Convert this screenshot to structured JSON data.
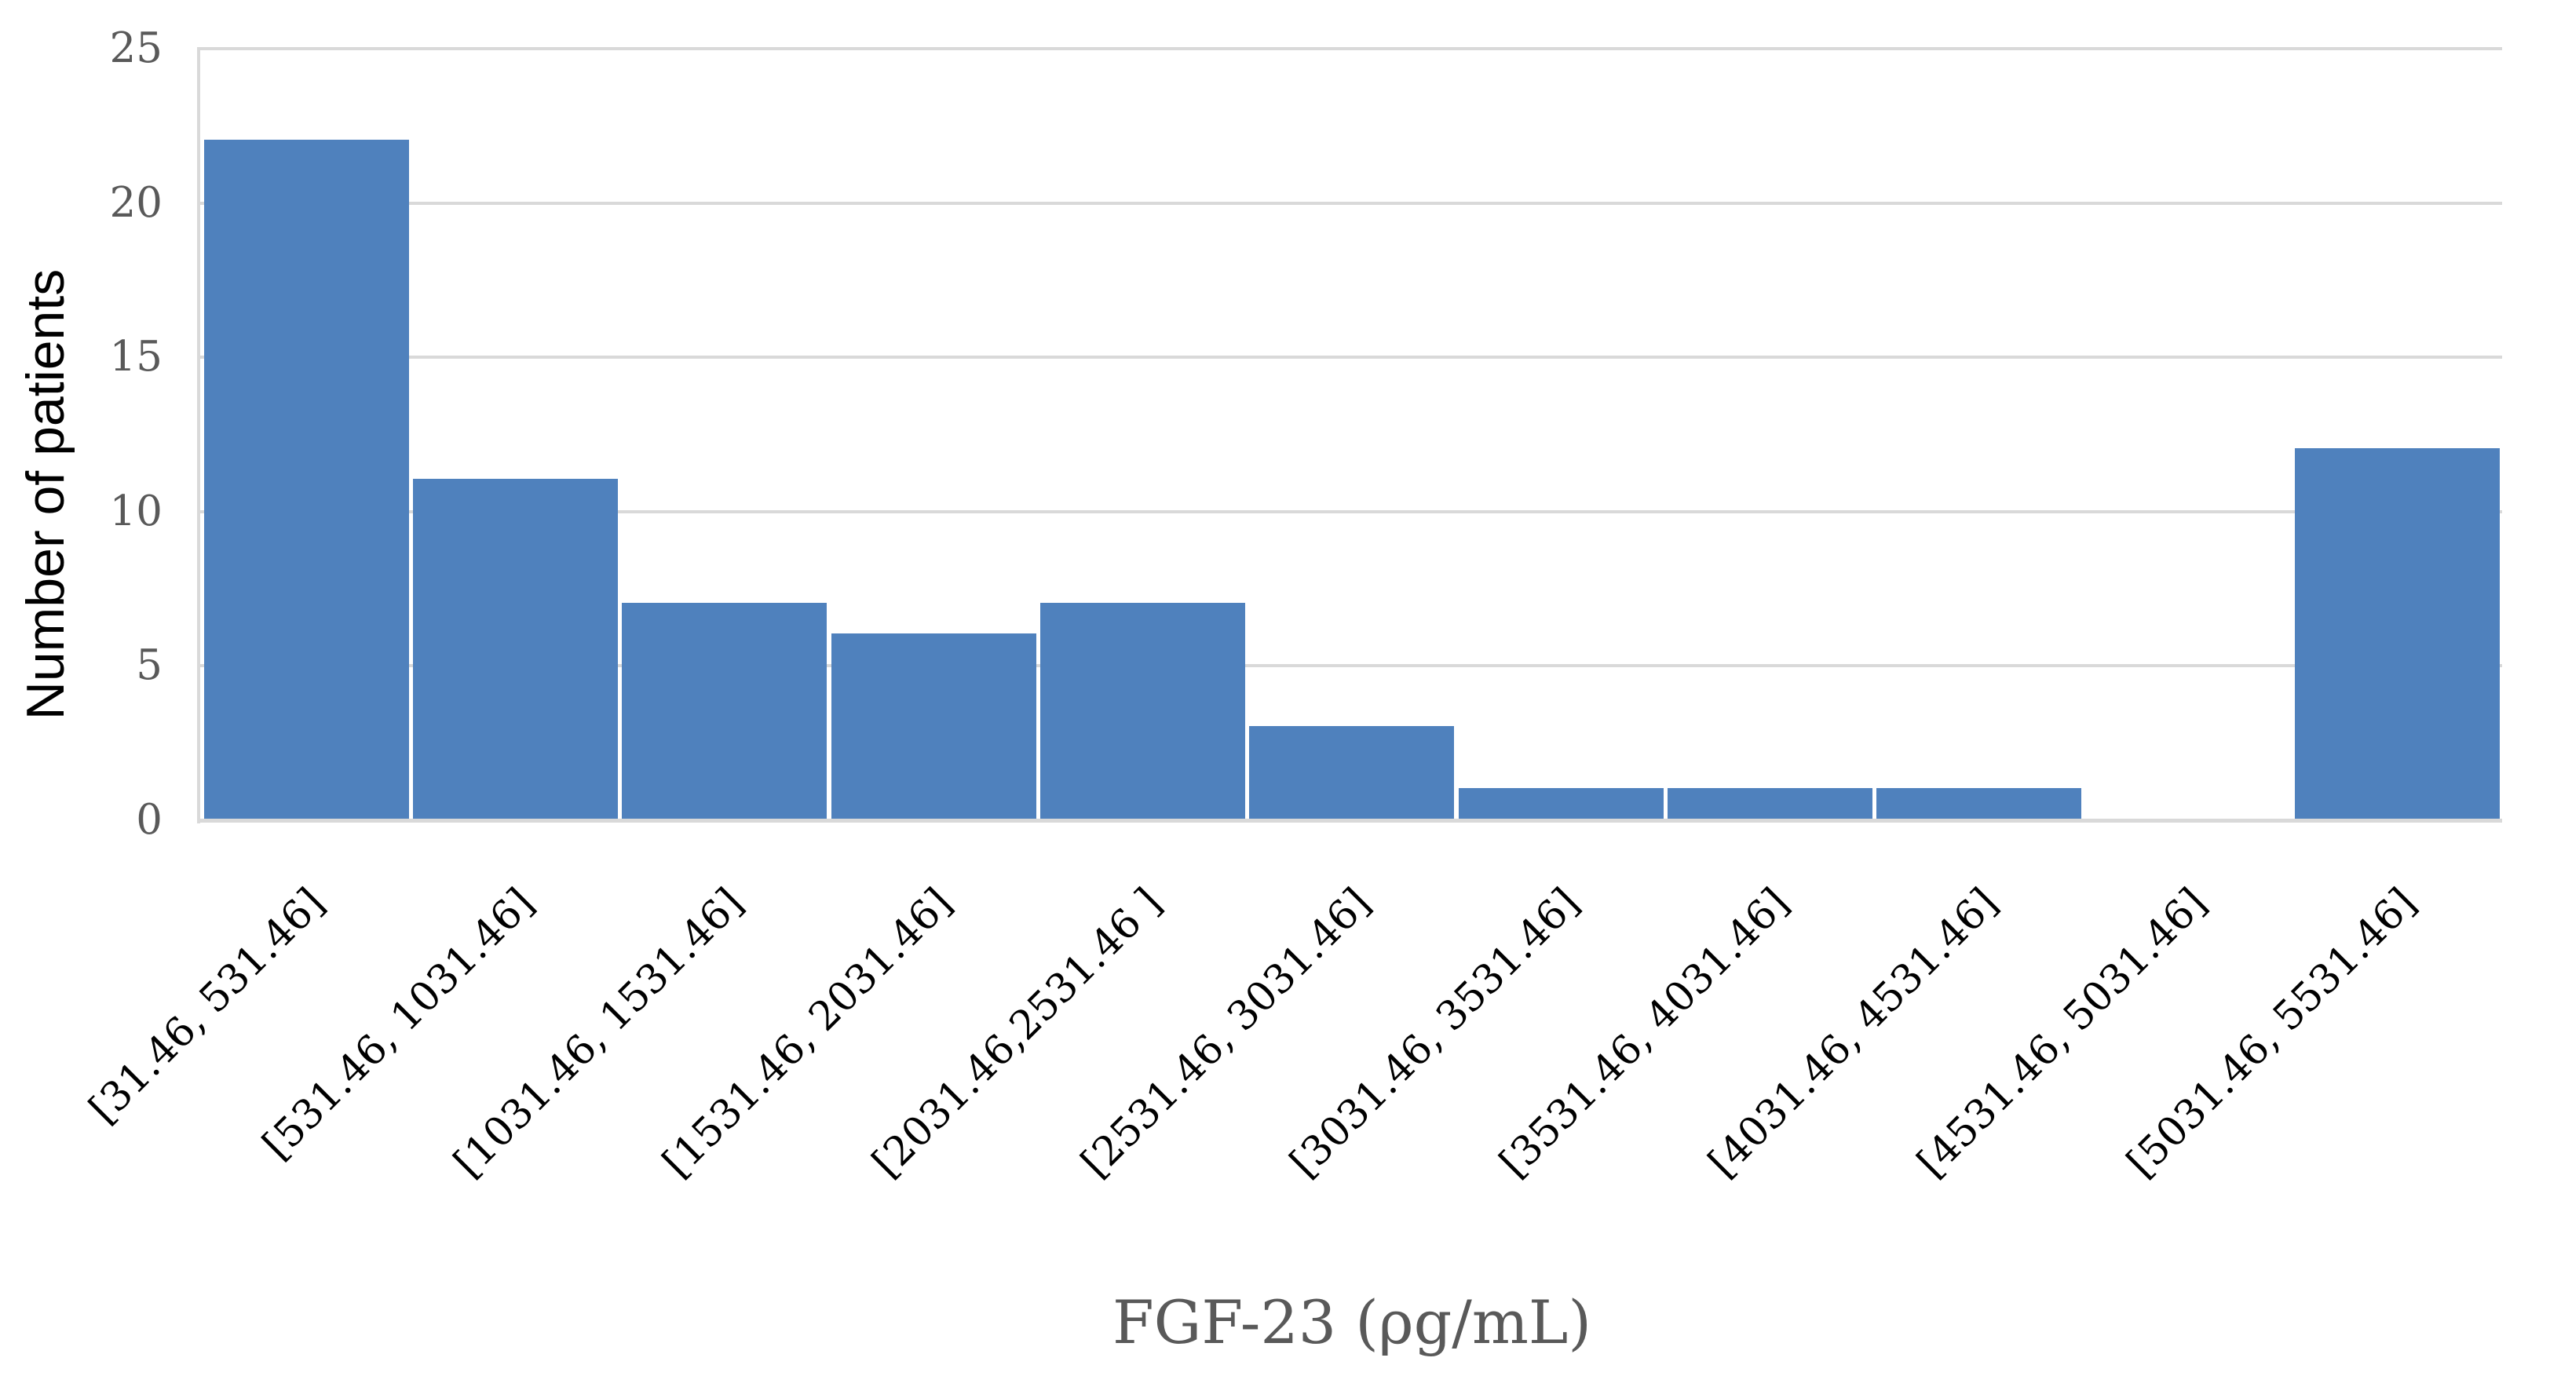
{
  "chart_data": {
    "type": "bar",
    "subtype": "histogram",
    "title": "",
    "xlabel": "FGF-23 (ρg/mL)",
    "ylabel": "Number of patients",
    "categories": [
      "[31.46, 531.46]",
      "[531.46, 1031.46]",
      "[1031.46, 1531.46]",
      "[1531.46, 2031.46]",
      "[2031.46,2531.46 ]",
      "[2531.46, 3031.46]",
      "[3031.46, 3531.46]",
      "[3531.46, 4031.46]",
      "[4031.46, 4531.46]",
      "[4531.46, 5031.46]",
      "[5031.46, 5531.46]"
    ],
    "values": [
      22,
      11,
      7,
      6,
      7,
      3,
      1,
      1,
      1,
      0,
      12
    ],
    "ylim": [
      0,
      25
    ],
    "y_ticks": [
      0,
      5,
      10,
      15,
      20,
      25
    ],
    "grid": "horizontal",
    "legend": "none",
    "category_label_rotation_deg": 45,
    "colors": {
      "bar": "#4F81BD",
      "gridline": "#D9D9D9",
      "tick_label": "#595959",
      "category_label": "#000000",
      "y_axis_title": "#000000",
      "x_axis_title": "#595959",
      "background": "#FFFFFF"
    }
  }
}
